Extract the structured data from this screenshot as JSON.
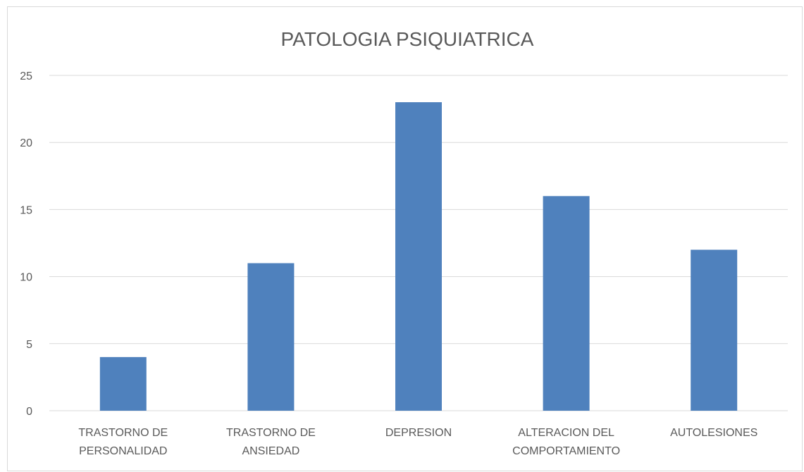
{
  "chart_data": {
    "type": "bar",
    "title": "PATOLOGIA PSIQUIATRICA",
    "categories": [
      "TRASTORNO DE PERSONALIDAD",
      "TRASTORNO DE ANSIEDAD",
      "DEPRESION",
      "ALTERACION DEL COMPORTAMIENTO",
      "AUTOLESIONES"
    ],
    "values": [
      4,
      11,
      23,
      16,
      12
    ],
    "color": "#4f81bd",
    "ylim": [
      0,
      25
    ],
    "yticks": [
      0,
      5,
      10,
      15,
      20,
      25
    ],
    "grid": true
  }
}
